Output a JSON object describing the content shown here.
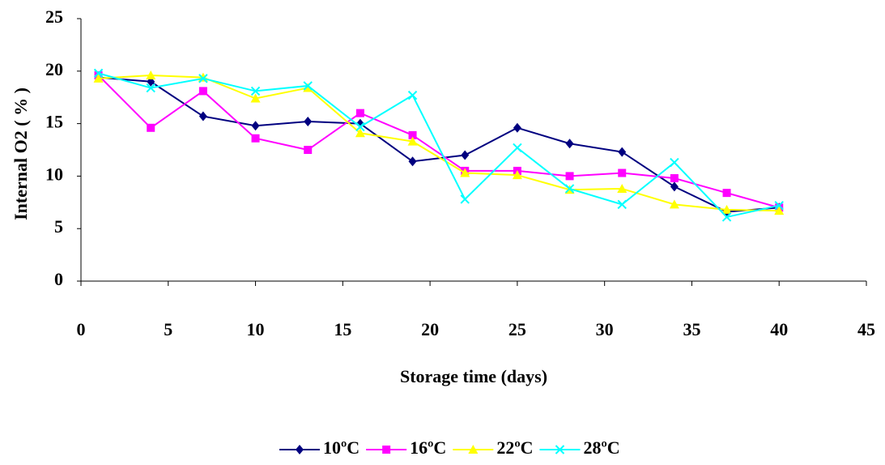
{
  "chart_data": {
    "type": "line",
    "x_label": "Storage time (days)",
    "y_label": "Internal O2 ( % )",
    "x": [
      1,
      4,
      7,
      10,
      13,
      16,
      19,
      22,
      25,
      28,
      31,
      34,
      37,
      40
    ],
    "series": [
      {
        "name": "10ºC",
        "color": "#000080",
        "marker": "diamond",
        "values": [
          19.4,
          19.0,
          15.7,
          14.8,
          15.2,
          15.0,
          11.4,
          12.0,
          14.6,
          13.1,
          12.3,
          9.0,
          6.6,
          7.0
        ]
      },
      {
        "name": "16ºC",
        "color": "#ff00ff",
        "marker": "square",
        "values": [
          19.6,
          14.6,
          18.1,
          13.6,
          12.5,
          16.0,
          13.9,
          10.5,
          10.5,
          10.0,
          10.3,
          9.8,
          8.4,
          7.0
        ]
      },
      {
        "name": "22ºC",
        "color": "#ffff00",
        "marker": "triangle",
        "values": [
          19.3,
          19.6,
          19.4,
          17.4,
          18.4,
          14.1,
          13.3,
          10.3,
          10.1,
          8.7,
          8.8,
          7.3,
          6.8,
          6.7
        ]
      },
      {
        "name": "28ºC",
        "color": "#00ffff",
        "marker": "x",
        "values": [
          19.8,
          18.4,
          19.3,
          18.1,
          18.6,
          14.7,
          17.7,
          7.8,
          12.7,
          8.8,
          7.3,
          11.3,
          6.1,
          7.2
        ]
      }
    ],
    "xlim": [
      0,
      45
    ],
    "xticks": [
      0,
      5,
      10,
      15,
      20,
      25,
      30,
      35,
      40,
      45
    ],
    "ylim": [
      0,
      25
    ],
    "yticks": [
      0,
      5,
      10,
      15,
      20,
      25
    ],
    "grid": false,
    "legend": "bottom"
  }
}
